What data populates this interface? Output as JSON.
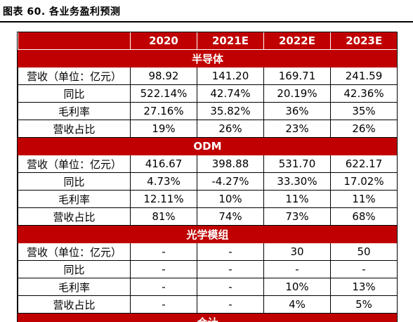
{
  "caption": "图表 60. 各业务盈利预测",
  "columns": [
    "",
    "2020",
    "2021E",
    "2022E",
    "2023E"
  ],
  "sections": [
    {
      "title": "半导体",
      "rows": [
        {
          "label": "营收（单位：亿元）",
          "values": [
            "98.92",
            "141.20",
            "169.71",
            "241.59"
          ]
        },
        {
          "label": "同比",
          "values": [
            "522.14%",
            "42.74%",
            "20.19%",
            "42.36%"
          ]
        },
        {
          "label": "毛利率",
          "values": [
            "27.16%",
            "35.82%",
            "36%",
            "35%"
          ]
        },
        {
          "label": "营收占比",
          "values": [
            "19%",
            "26%",
            "23%",
            "26%"
          ]
        }
      ]
    },
    {
      "title": "ODM",
      "rows": [
        {
          "label": "营收（单位：亿元）",
          "values": [
            "416.67",
            "398.88",
            "531.70",
            "622.17"
          ]
        },
        {
          "label": "同比",
          "values": [
            "4.73%",
            "-4.27%",
            "33.30%",
            "17.02%"
          ]
        },
        {
          "label": "毛利率",
          "values": [
            "12.11%",
            "10%",
            "11%",
            "11%"
          ]
        },
        {
          "label": "营收占比",
          "values": [
            "81%",
            "74%",
            "73%",
            "68%"
          ]
        }
      ]
    },
    {
      "title": "光学模组",
      "rows": [
        {
          "label": "营收（单位：亿元）",
          "values": [
            "-",
            "-",
            "30",
            "50"
          ]
        },
        {
          "label": "同比",
          "values": [
            "-",
            "-",
            "-",
            "-"
          ]
        },
        {
          "label": "毛利率",
          "values": [
            "-",
            "-",
            "10%",
            "13%"
          ]
        },
        {
          "label": "营收占比",
          "values": [
            "-",
            "-",
            "4%",
            "5%"
          ]
        }
      ]
    },
    {
      "title": "合计",
      "rows": []
    }
  ]
}
